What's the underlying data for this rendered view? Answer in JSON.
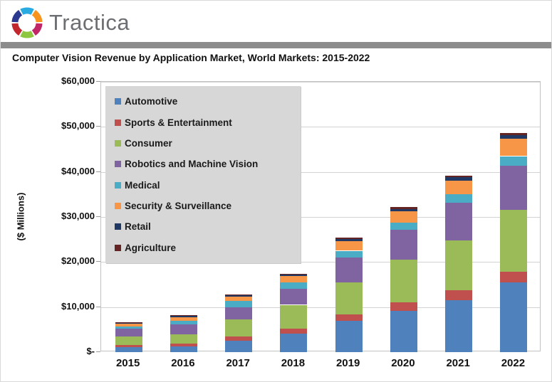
{
  "header": {
    "logo_text": "Tractica",
    "logo_icon_colors": [
      "#29ABE2",
      "#F7941E",
      "#C22667",
      "#8DC63F",
      "#C1272D",
      "#2B3990"
    ],
    "divider_color": "#8c8c8c"
  },
  "title": {
    "text": "Computer Vision Revenue by Application Market, World Markets: 2015-2022"
  },
  "chart_data": {
    "type": "bar",
    "stacked": true,
    "title": "Computer Vision Revenue by Application Market, World Markets: 2015-2022",
    "ylabel": "($ Millions)",
    "xlabel": "",
    "ylim": [
      0,
      60000
    ],
    "ytick_step": 10000,
    "ytick_labels": [
      "$-",
      "$10,000",
      "$20,000",
      "$30,000",
      "$40,000",
      "$50,000",
      "$60,000"
    ],
    "grid": true,
    "legend_position": "upper-left-inside",
    "categories": [
      "2015",
      "2016",
      "2017",
      "2018",
      "2019",
      "2020",
      "2021",
      "2022"
    ],
    "series": [
      {
        "name": "Automotive",
        "color": "#4F81BD",
        "values": [
          1100,
          1300,
          2500,
          4100,
          6900,
          9200,
          11600,
          15500
        ]
      },
      {
        "name": "Sports & Entertainment",
        "color": "#C0504D",
        "values": [
          500,
          600,
          950,
          1100,
          1500,
          1900,
          2100,
          2400
        ]
      },
      {
        "name": "Consumer",
        "color": "#9BBB59",
        "values": [
          1900,
          2000,
          3800,
          5300,
          7000,
          9500,
          11100,
          13700
        ]
      },
      {
        "name": "Robotics and Machine Vision",
        "color": "#8064A2",
        "values": [
          1700,
          2200,
          2700,
          3500,
          5600,
          6500,
          8400,
          9800
        ]
      },
      {
        "name": "Medical",
        "color": "#4BACC6",
        "values": [
          500,
          900,
          1400,
          1500,
          1500,
          1600,
          1900,
          2100
        ]
      },
      {
        "name": "Security & Surveillance",
        "color": "#F79646",
        "values": [
          600,
          700,
          950,
          1400,
          2100,
          2500,
          3000,
          3800
        ]
      },
      {
        "name": "Retail",
        "color": "#1F3864",
        "values": [
          250,
          300,
          300,
          300,
          500,
          600,
          700,
          800
        ]
      },
      {
        "name": "Agriculture",
        "color": "#632423",
        "values": [
          150,
          200,
          200,
          200,
          300,
          350,
          400,
          500
        ]
      }
    ],
    "totals": [
      6700,
      8200,
      12800,
      17400,
      25400,
      32150,
      39200,
      48600
    ]
  }
}
